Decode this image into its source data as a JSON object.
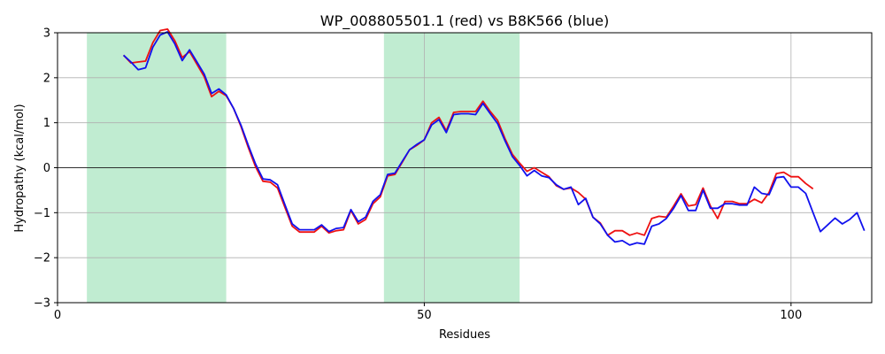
{
  "chart_data": {
    "type": "line",
    "title": "WP_008805501.1 (red) vs B8K566 (blue)",
    "xlabel": "Residues",
    "ylabel": "Hydropathy (kcal/mol)",
    "xlim": [
      0,
      111
    ],
    "ylim": [
      -3,
      3
    ],
    "xticks": [
      0,
      50,
      100
    ],
    "yticks": [
      -3,
      -2,
      -1,
      0,
      1,
      2,
      3
    ],
    "grid": true,
    "zero_line": true,
    "highlight_regions": [
      {
        "start": 4,
        "end": 23,
        "color": "#c0ecd1"
      },
      {
        "start": 44.5,
        "end": 63,
        "color": "#c0ecd1"
      }
    ],
    "series": [
      {
        "name": "WP_008805501.1",
        "color": "#ee1111",
        "x": [
          9,
          10,
          11,
          12,
          13,
          14,
          15,
          16,
          17,
          18,
          19,
          20,
          21,
          22,
          23,
          24,
          25,
          26,
          27,
          28,
          29,
          30,
          31,
          32,
          33,
          34,
          35,
          36,
          37,
          38,
          39,
          40,
          41,
          42,
          43,
          44,
          45,
          46,
          47,
          48,
          49,
          50,
          51,
          52,
          53,
          54,
          55,
          56,
          57,
          58,
          59,
          60,
          61,
          62,
          63,
          64,
          65,
          66,
          67,
          68,
          69,
          70,
          71,
          72,
          73,
          74,
          75,
          76,
          77,
          78,
          79,
          80,
          81,
          82,
          83,
          84,
          85,
          86,
          87,
          88,
          89,
          90,
          91,
          92,
          93,
          94,
          95,
          96,
          97,
          98,
          99,
          100,
          101,
          102,
          103
        ],
        "y": [
          2.5,
          2.33,
          2.35,
          2.37,
          2.78,
          3.05,
          3.08,
          2.82,
          2.45,
          2.58,
          2.3,
          2.02,
          1.58,
          1.7,
          1.6,
          1.32,
          0.92,
          0.45,
          0.02,
          -0.3,
          -0.32,
          -0.45,
          -0.88,
          -1.3,
          -1.43,
          -1.43,
          -1.43,
          -1.3,
          -1.45,
          -1.4,
          -1.38,
          -0.95,
          -1.25,
          -1.15,
          -0.8,
          -0.65,
          -0.18,
          -0.15,
          0.12,
          0.4,
          0.5,
          0.62,
          1.0,
          1.12,
          0.82,
          1.23,
          1.25,
          1.25,
          1.25,
          1.48,
          1.25,
          1.05,
          0.65,
          0.3,
          0.1,
          -0.08,
          0.0,
          -0.1,
          -0.2,
          -0.4,
          -0.48,
          -0.45,
          -0.55,
          -0.7,
          -1.1,
          -1.23,
          -1.5,
          -1.4,
          -1.4,
          -1.5,
          -1.45,
          -1.5,
          -1.13,
          -1.08,
          -1.1,
          -0.85,
          -0.58,
          -0.85,
          -0.82,
          -0.45,
          -0.85,
          -1.13,
          -0.75,
          -0.75,
          -0.8,
          -0.8,
          -0.7,
          -0.78,
          -0.55,
          -0.13,
          -0.1,
          -0.2,
          -0.2,
          -0.35,
          -0.47
        ]
      },
      {
        "name": "B8K566",
        "color": "#1111ee",
        "x": [
          9,
          10,
          11,
          12,
          13,
          14,
          15,
          16,
          17,
          18,
          19,
          20,
          21,
          22,
          23,
          24,
          25,
          26,
          27,
          28,
          29,
          30,
          31,
          32,
          33,
          34,
          35,
          36,
          37,
          38,
          39,
          40,
          41,
          42,
          43,
          44,
          45,
          46,
          47,
          48,
          49,
          50,
          51,
          52,
          53,
          54,
          55,
          56,
          57,
          58,
          59,
          60,
          61,
          62,
          63,
          64,
          65,
          66,
          67,
          68,
          69,
          70,
          71,
          72,
          73,
          74,
          75,
          76,
          77,
          78,
          79,
          80,
          81,
          82,
          83,
          84,
          85,
          86,
          87,
          88,
          89,
          90,
          91,
          92,
          93,
          94,
          95,
          96,
          97,
          98,
          99,
          100,
          101,
          102,
          103,
          104,
          105,
          106,
          107,
          108,
          109,
          110
        ],
        "y": [
          2.5,
          2.35,
          2.18,
          2.22,
          2.68,
          2.95,
          3.02,
          2.75,
          2.38,
          2.62,
          2.35,
          2.08,
          1.65,
          1.75,
          1.62,
          1.32,
          0.95,
          0.5,
          0.08,
          -0.25,
          -0.27,
          -0.38,
          -0.82,
          -1.25,
          -1.38,
          -1.38,
          -1.38,
          -1.27,
          -1.42,
          -1.35,
          -1.33,
          -0.93,
          -1.2,
          -1.1,
          -0.75,
          -0.6,
          -0.15,
          -0.12,
          0.14,
          0.4,
          0.52,
          0.62,
          0.95,
          1.07,
          0.78,
          1.18,
          1.2,
          1.2,
          1.18,
          1.43,
          1.2,
          0.98,
          0.6,
          0.25,
          0.05,
          -0.18,
          -0.06,
          -0.18,
          -0.22,
          -0.38,
          -0.48,
          -0.43,
          -0.82,
          -0.68,
          -1.1,
          -1.25,
          -1.5,
          -1.65,
          -1.62,
          -1.72,
          -1.67,
          -1.7,
          -1.3,
          -1.25,
          -1.13,
          -0.9,
          -0.62,
          -0.95,
          -0.95,
          -0.5,
          -0.9,
          -0.9,
          -0.8,
          -0.8,
          -0.83,
          -0.83,
          -0.43,
          -0.57,
          -0.6,
          -0.22,
          -0.2,
          -0.43,
          -0.43,
          -0.57,
          -1.0,
          -1.42,
          -1.27,
          -1.12,
          -1.25,
          -1.15,
          -1.0,
          -1.4
        ]
      }
    ]
  }
}
